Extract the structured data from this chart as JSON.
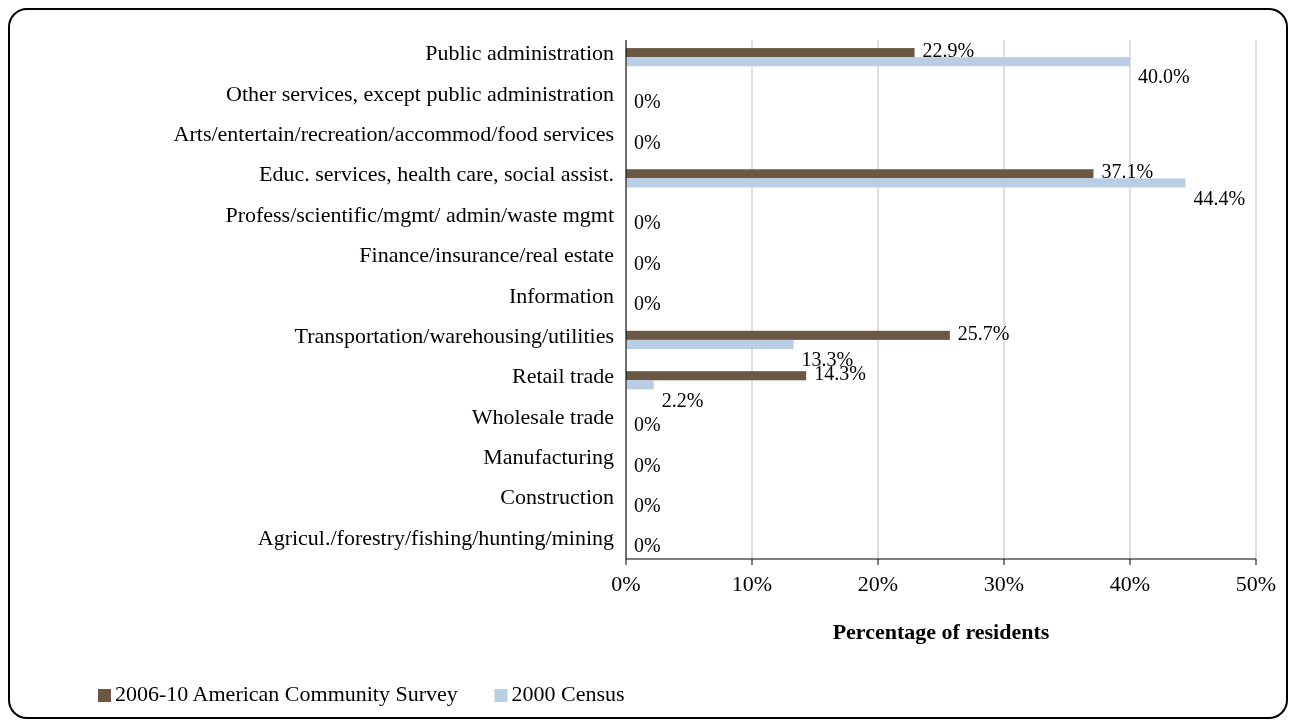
{
  "chart_data": {
    "type": "bar",
    "orientation": "horizontal",
    "xlabel": "Percentage of residents",
    "categories": [
      "Public administration",
      "Other services, except public administration",
      "Arts/entertain/recreation/accommod/food services",
      "Educ. services, health care, social assist.",
      "Profess/scientific/mgmt/ admin/waste mgmt",
      "Finance/insurance/real estate",
      "Information",
      "Transportation/warehousing/utilities",
      "Retail trade",
      "Wholesale trade",
      "Manufacturing",
      "Construction",
      "Agricul./forestry/fishing/hunting/mining"
    ],
    "series": [
      {
        "name": "2006-10 American Community Survey",
        "color": "#6b5844",
        "values": [
          22.9,
          0,
          0,
          37.1,
          0,
          0,
          0,
          25.7,
          14.3,
          0,
          0,
          0,
          0
        ],
        "value_labels": [
          "22.9%",
          "0%",
          "0%",
          "37.1%",
          "0%",
          "0%",
          "0%",
          "25.7%",
          "14.3%",
          "0%",
          "0%",
          "0%",
          "0%"
        ]
      },
      {
        "name": "2000 Census",
        "color": "#b9cde5",
        "values": [
          40.0,
          0,
          0,
          44.4,
          0,
          0,
          0,
          13.3,
          2.2,
          0,
          0,
          0,
          0
        ],
        "value_labels": [
          "40.0%",
          null,
          null,
          "44.4%",
          null,
          null,
          null,
          "13.3%",
          "2.2%",
          null,
          null,
          null,
          null
        ]
      }
    ],
    "xlim": [
      0,
      50
    ],
    "xticks": [
      {
        "value": 0,
        "label": "0%"
      },
      {
        "value": 10,
        "label": "10%"
      },
      {
        "value": 20,
        "label": "20%"
      },
      {
        "value": 30,
        "label": "30%"
      },
      {
        "value": 40,
        "label": "40%"
      },
      {
        "value": 50,
        "label": "50%"
      }
    ],
    "grid": "x",
    "legend": "bottom"
  }
}
